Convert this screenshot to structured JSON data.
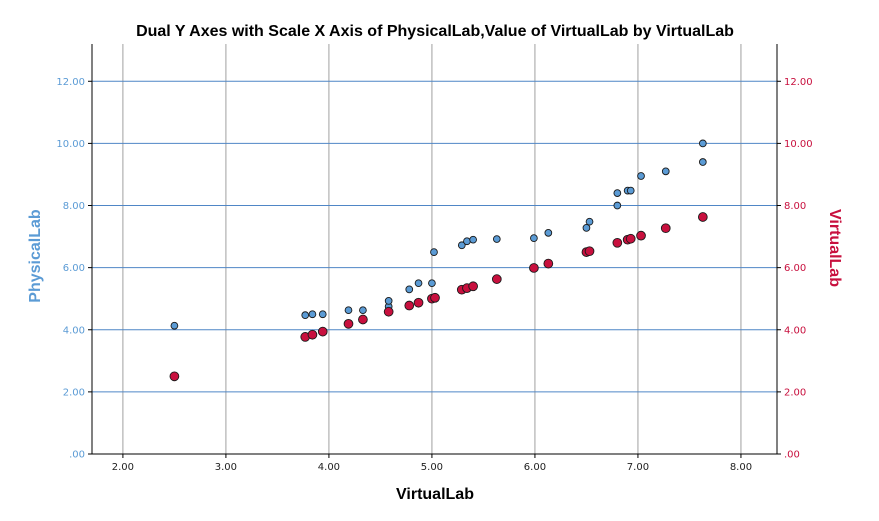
{
  "chart_data": {
    "type": "scatter",
    "title": "Dual Y Axes with Scale X Axis of PhysicalLab,Value of VirtualLab  by VirtualLab",
    "xlabel": "VirtualLab",
    "ylabel_left": "PhysicalLab",
    "ylabel_right": "VirtualLab",
    "xlim": [
      1.7,
      8.35
    ],
    "ylim": [
      0,
      13.2
    ],
    "x_ticks": [
      "2.00",
      "3.00",
      "4.00",
      "5.00",
      "6.00",
      "7.00",
      "8.00"
    ],
    "y_ticks": [
      ".00",
      "2.00",
      "4.00",
      "6.00",
      "8.00",
      "10.00",
      "12.00"
    ],
    "grid": true,
    "colors": {
      "left": "#5b9bd5",
      "right": "#c8103e",
      "grid_h": "#4f86c6",
      "grid_v": "#a0a0a0"
    },
    "series": [
      {
        "name": "PhysicalLab",
        "axis": "left",
        "color": "#5b9bd5",
        "points": [
          [
            2.5,
            4.13
          ],
          [
            3.77,
            4.47
          ],
          [
            3.84,
            4.5
          ],
          [
            3.94,
            4.5
          ],
          [
            4.19,
            4.63
          ],
          [
            4.33,
            4.63
          ],
          [
            4.58,
            4.75
          ],
          [
            4.58,
            4.93
          ],
          [
            4.78,
            5.3
          ],
          [
            4.87,
            5.5
          ],
          [
            5.0,
            5.5
          ],
          [
            5.02,
            6.5
          ],
          [
            5.29,
            6.72
          ],
          [
            5.34,
            6.85
          ],
          [
            5.4,
            6.9
          ],
          [
            5.63,
            6.92
          ],
          [
            5.99,
            6.95
          ],
          [
            6.13,
            7.12
          ],
          [
            6.5,
            7.28
          ],
          [
            6.53,
            7.48
          ],
          [
            6.8,
            8.0
          ],
          [
            6.8,
            8.4
          ],
          [
            6.9,
            8.48
          ],
          [
            6.93,
            8.48
          ],
          [
            7.03,
            8.95
          ],
          [
            7.27,
            9.1
          ],
          [
            7.63,
            9.4
          ],
          [
            7.63,
            10.0
          ]
        ]
      },
      {
        "name": "VirtualLab",
        "axis": "right",
        "color": "#c8103e",
        "points": [
          [
            2.5,
            2.5
          ],
          [
            3.77,
            3.77
          ],
          [
            3.84,
            3.84
          ],
          [
            3.94,
            3.94
          ],
          [
            4.19,
            4.19
          ],
          [
            4.33,
            4.33
          ],
          [
            4.58,
            4.58
          ],
          [
            4.78,
            4.78
          ],
          [
            4.87,
            4.87
          ],
          [
            5.0,
            5.0
          ],
          [
            5.03,
            5.03
          ],
          [
            5.29,
            5.29
          ],
          [
            5.34,
            5.34
          ],
          [
            5.4,
            5.4
          ],
          [
            5.63,
            5.63
          ],
          [
            5.99,
            5.99
          ],
          [
            6.13,
            6.13
          ],
          [
            6.5,
            6.5
          ],
          [
            6.53,
            6.53
          ],
          [
            6.8,
            6.8
          ],
          [
            6.9,
            6.9
          ],
          [
            6.93,
            6.93
          ],
          [
            7.03,
            7.03
          ],
          [
            7.27,
            7.27
          ],
          [
            7.63,
            7.63
          ]
        ]
      }
    ]
  }
}
